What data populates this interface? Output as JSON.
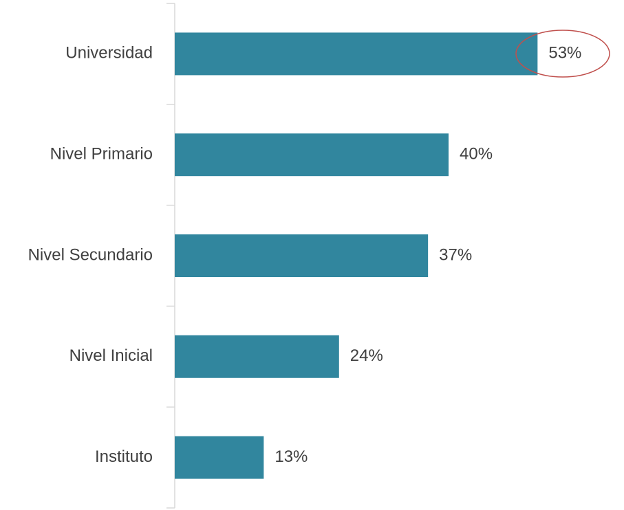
{
  "chart_data": {
    "type": "barh",
    "categories": [
      "Universidad",
      "Nivel Primario",
      "Nivel Secundario",
      "Nivel Inicial",
      "Instituto"
    ],
    "values": [
      53,
      40,
      37,
      24,
      13
    ],
    "value_labels": [
      "53%",
      "40%",
      "37%",
      "24%",
      "13%"
    ],
    "color": "#31869e",
    "xlim": [
      0,
      60
    ]
  }
}
